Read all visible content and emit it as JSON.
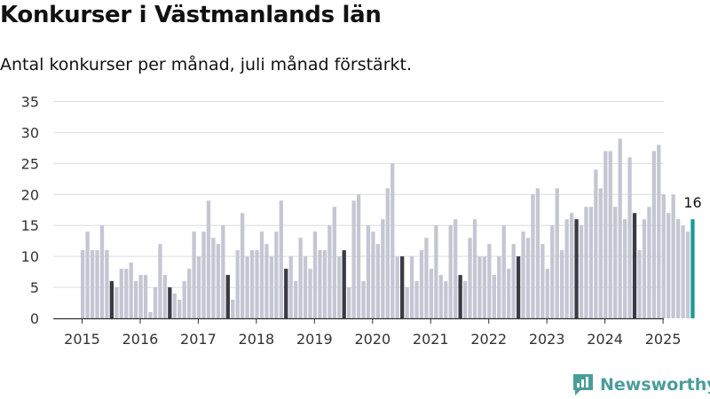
{
  "header": {
    "title": "Konkurser i Västmanlands län",
    "subtitle": "Antal konkurser per månad, juli månad förstärkt."
  },
  "brand": {
    "name": "Newsworthy",
    "icon": "newsworthy-logo-icon",
    "color": "#4a9e9a"
  },
  "colors": {
    "bar": "#c5c6d3",
    "highlight": "#3b3a44",
    "latest": "#1a9a96",
    "grid": "#dddddd",
    "axis": "#333333"
  },
  "chart_data": {
    "type": "bar",
    "title": "Konkurser i Västmanlands län",
    "subtitle": "Antal konkurser per månad, juli månad förstärkt.",
    "xlabel": "",
    "ylabel": "",
    "ylim": [
      0,
      35
    ],
    "yticks": [
      0,
      5,
      10,
      15,
      20,
      25,
      30,
      35
    ],
    "xticks": [
      "2015",
      "2016",
      "2017",
      "2018",
      "2019",
      "2020",
      "2021",
      "2022",
      "2023",
      "2024",
      "2025"
    ],
    "start": "2015-01",
    "grid": true,
    "highlight_month": "july",
    "latest_label": "16",
    "series": [
      {
        "values": [
          11,
          14,
          11,
          11,
          15,
          11,
          6,
          5,
          8,
          8,
          9,
          6,
          7,
          7,
          1,
          5,
          12,
          7,
          5,
          4,
          3,
          6,
          8,
          14,
          10,
          14,
          19,
          13,
          12,
          15,
          7,
          3,
          11,
          17,
          10,
          11,
          11,
          14,
          12,
          10,
          14,
          19,
          8,
          10,
          6,
          13,
          10,
          8,
          14,
          11,
          11,
          15,
          18,
          10,
          11,
          5,
          19,
          20,
          6,
          15,
          14,
          12,
          16,
          21,
          25,
          10,
          10,
          5,
          10,
          6,
          11,
          13,
          8,
          15,
          7,
          6,
          15,
          16,
          7,
          6,
          13,
          16,
          10,
          10,
          12,
          7,
          10,
          15,
          8,
          12,
          10,
          14,
          13,
          20,
          21,
          12,
          8,
          15,
          21,
          11,
          16,
          17,
          16,
          15,
          18,
          18,
          24,
          21,
          27,
          27,
          18,
          29,
          16,
          26,
          17,
          11,
          16,
          18,
          27,
          28,
          20,
          17,
          20,
          16,
          15,
          14,
          16
        ]
      }
    ]
  }
}
